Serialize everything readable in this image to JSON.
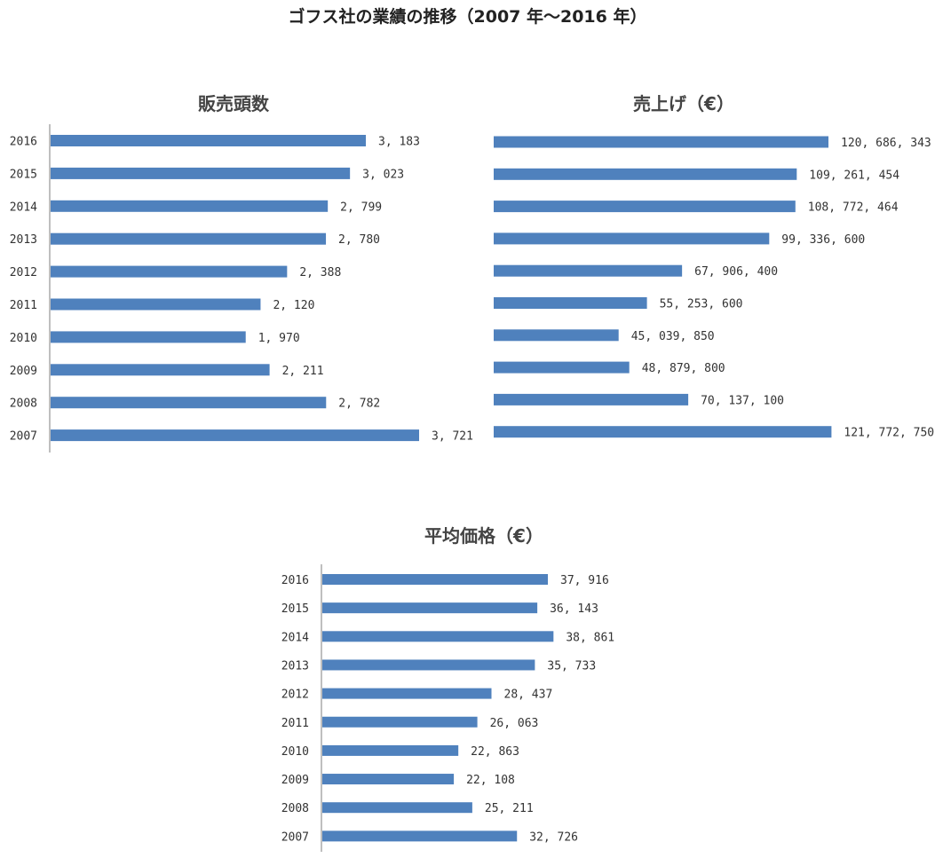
{
  "title": "ゴフス社の業績の推移（2007 年〜2016 年）",
  "colors": {
    "bar": "#4f81bd",
    "axis": "#bfbfbf"
  },
  "chart_data": [
    {
      "type": "bar",
      "orientation": "horizontal",
      "title": "販売頭数",
      "categories": [
        "2016",
        "2015",
        "2014",
        "2013",
        "2012",
        "2011",
        "2010",
        "2009",
        "2008",
        "2007"
      ],
      "values": [
        3183,
        3023,
        2799,
        2780,
        2388,
        2120,
        1970,
        2211,
        2782,
        3721
      ],
      "labels": [
        "3, 183",
        "3, 023",
        "2, 799",
        "2, 780",
        "2, 388",
        "2, 120",
        "1, 970",
        "2, 211",
        "2, 782",
        "3, 721"
      ]
    },
    {
      "type": "bar",
      "orientation": "horizontal",
      "title": "売上げ（€）",
      "categories": [
        "2016",
        "2015",
        "2014",
        "2013",
        "2012",
        "2011",
        "2010",
        "2009",
        "2008",
        "2007"
      ],
      "values": [
        120686343,
        109261454,
        108772464,
        99336600,
        67906400,
        55253600,
        45039850,
        48879800,
        70137100,
        121772750
      ],
      "labels": [
        "120, 686, 343",
        "109, 261, 454",
        "108, 772, 464",
        "99, 336, 600",
        "67, 906, 400",
        "55, 253, 600",
        "45, 039, 850",
        "48, 879, 800",
        "70, 137, 100",
        "121, 772, 750"
      ]
    },
    {
      "type": "bar",
      "orientation": "horizontal",
      "title": "平均価格（€）",
      "categories": [
        "2016",
        "2015",
        "2014",
        "2013",
        "2012",
        "2011",
        "2010",
        "2009",
        "2008",
        "2007"
      ],
      "values": [
        37916,
        36143,
        38861,
        35733,
        28437,
        26063,
        22863,
        22108,
        25211,
        32726
      ],
      "labels": [
        "37, 916",
        "36, 143",
        "38, 861",
        "35, 733",
        "28, 437",
        "26, 063",
        "22, 863",
        "22, 108",
        "25, 211",
        "32, 726"
      ]
    }
  ]
}
